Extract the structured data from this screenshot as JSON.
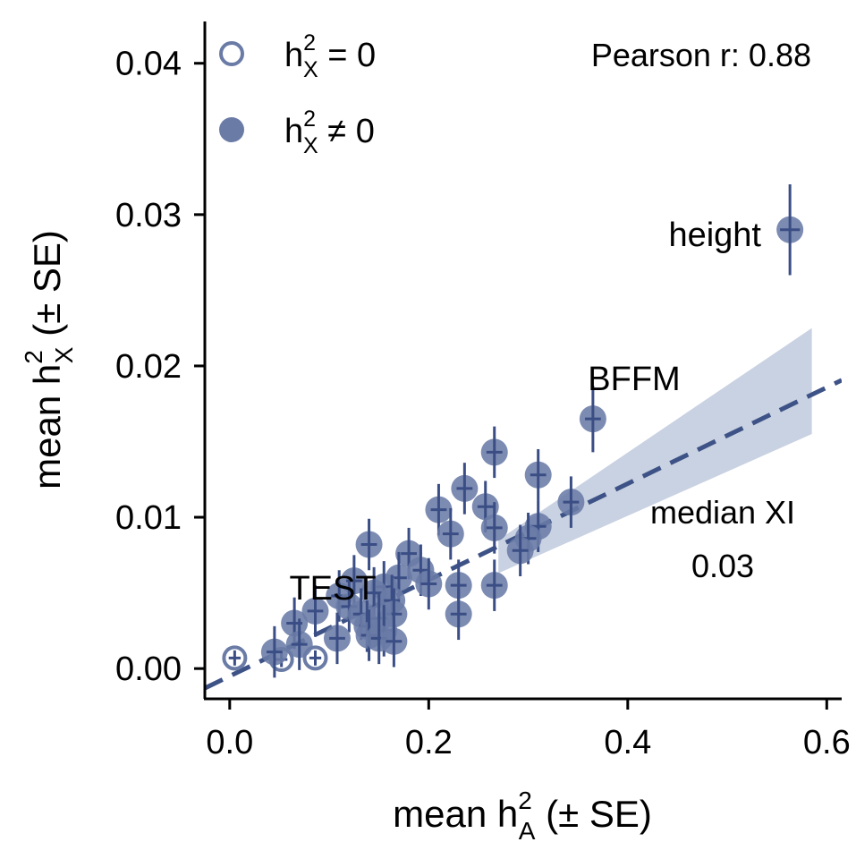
{
  "chart_data": {
    "type": "scatter",
    "title": "",
    "xlabel": {
      "base": "mean h",
      "sup": "2",
      "sub": "A",
      "suffix": " (± SE)"
    },
    "ylabel": {
      "base": "mean h",
      "sup": "2",
      "sub": "X",
      "suffix": " (± SE)"
    },
    "xlim": [
      -0.025,
      0.615
    ],
    "ylim": [
      -0.002,
      0.043
    ],
    "xticks": [
      0.0,
      0.2,
      0.4,
      0.6
    ],
    "xtick_labels": [
      "0.0",
      "0.2",
      "0.4",
      "0.6"
    ],
    "yticks": [
      0.0,
      0.01,
      0.02,
      0.03,
      0.04
    ],
    "ytick_labels": [
      "0.00",
      "0.01",
      "0.02",
      "0.03",
      "0.04"
    ],
    "grid": false,
    "legend": {
      "placement": "top-left",
      "entries": [
        {
          "base": "h",
          "sup": "2",
          "sub": "X",
          "rel": " = 0",
          "marker": "open"
        },
        {
          "base": "h",
          "sup": "2",
          "sub": "X",
          "rel": " ≠ 0",
          "marker": "filled"
        }
      ]
    },
    "pearson_text": "Pearson r: 0.88",
    "median_label": "median XI",
    "median_value": "0.03",
    "colors": {
      "point": "#6a7ba6",
      "errorbar": "#3a4e85",
      "regression": "#3d5286",
      "band": "#c9d2e2",
      "median_text": "#4a5c91",
      "axis": "#000000"
    },
    "regression": {
      "slope": 0.0318,
      "intercept": -0.0005,
      "x_range": [
        -0.025,
        0.615
      ],
      "style": "dashed"
    },
    "confidence_band": {
      "x": [
        0.27,
        0.585
      ],
      "upper": [
        0.0085,
        0.0225
      ],
      "lower": [
        0.0063,
        0.0155
      ]
    },
    "annotations": [
      {
        "text": "height",
        "x": 0.563,
        "y": 0.029,
        "anchor": "left-of-point"
      },
      {
        "text": "BFFM",
        "x": 0.365,
        "y": 0.0165,
        "anchor": "above"
      },
      {
        "text": "TEST",
        "x": 0.1,
        "y": 0.0055,
        "anchor": "above"
      }
    ],
    "series": [
      {
        "name": "h2X = 0",
        "marker": "open",
        "points": [
          {
            "x": 0.005,
            "y": 0.0007,
            "xerr": 0.006,
            "yerr": 0.0005
          },
          {
            "x": 0.052,
            "y": 0.0006,
            "xerr": 0.006,
            "yerr": 0.0005
          },
          {
            "x": 0.086,
            "y": 0.0007,
            "xerr": 0.006,
            "yerr": 0.0005
          }
        ]
      },
      {
        "name": "h2X ≠ 0",
        "marker": "filled",
        "points": [
          {
            "x": 0.563,
            "y": 0.029,
            "xerr": 0.01,
            "yerr": 0.003
          },
          {
            "x": 0.365,
            "y": 0.0165,
            "xerr": 0.008,
            "yerr": 0.0022
          },
          {
            "x": 0.266,
            "y": 0.0143,
            "xerr": 0.008,
            "yerr": 0.0017
          },
          {
            "x": 0.31,
            "y": 0.0128,
            "xerr": 0.008,
            "yerr": 0.0017
          },
          {
            "x": 0.236,
            "y": 0.0119,
            "xerr": 0.008,
            "yerr": 0.0017
          },
          {
            "x": 0.343,
            "y": 0.011,
            "xerr": 0.008,
            "yerr": 0.0017
          },
          {
            "x": 0.21,
            "y": 0.0105,
            "xerr": 0.008,
            "yerr": 0.0017
          },
          {
            "x": 0.257,
            "y": 0.0107,
            "xerr": 0.008,
            "yerr": 0.0017
          },
          {
            "x": 0.266,
            "y": 0.0093,
            "xerr": 0.008,
            "yerr": 0.0017
          },
          {
            "x": 0.31,
            "y": 0.0094,
            "xerr": 0.008,
            "yerr": 0.0017
          },
          {
            "x": 0.222,
            "y": 0.0089,
            "xerr": 0.008,
            "yerr": 0.0017
          },
          {
            "x": 0.3,
            "y": 0.0086,
            "xerr": 0.008,
            "yerr": 0.0017
          },
          {
            "x": 0.292,
            "y": 0.0078,
            "xerr": 0.008,
            "yerr": 0.0017
          },
          {
            "x": 0.14,
            "y": 0.0082,
            "xerr": 0.008,
            "yerr": 0.0017
          },
          {
            "x": 0.18,
            "y": 0.0076,
            "xerr": 0.008,
            "yerr": 0.0017
          },
          {
            "x": 0.192,
            "y": 0.0065,
            "xerr": 0.008,
            "yerr": 0.0017
          },
          {
            "x": 0.17,
            "y": 0.006,
            "xerr": 0.008,
            "yerr": 0.0017
          },
          {
            "x": 0.2,
            "y": 0.0056,
            "xerr": 0.008,
            "yerr": 0.0017
          },
          {
            "x": 0.23,
            "y": 0.0055,
            "xerr": 0.008,
            "yerr": 0.0017
          },
          {
            "x": 0.266,
            "y": 0.0055,
            "xerr": 0.008,
            "yerr": 0.0017
          },
          {
            "x": 0.155,
            "y": 0.0054,
            "xerr": 0.008,
            "yerr": 0.0017
          },
          {
            "x": 0.125,
            "y": 0.0058,
            "xerr": 0.008,
            "yerr": 0.0017
          },
          {
            "x": 0.145,
            "y": 0.005,
            "xerr": 0.008,
            "yerr": 0.0017
          },
          {
            "x": 0.11,
            "y": 0.0048,
            "xerr": 0.008,
            "yerr": 0.0017
          },
          {
            "x": 0.163,
            "y": 0.0045,
            "xerr": 0.008,
            "yerr": 0.0017
          },
          {
            "x": 0.12,
            "y": 0.0041,
            "xerr": 0.008,
            "yerr": 0.0017
          },
          {
            "x": 0.086,
            "y": 0.0038,
            "xerr": 0.008,
            "yerr": 0.0017
          },
          {
            "x": 0.132,
            "y": 0.0036,
            "xerr": 0.008,
            "yerr": 0.0017
          },
          {
            "x": 0.165,
            "y": 0.0036,
            "xerr": 0.008,
            "yerr": 0.0017
          },
          {
            "x": 0.23,
            "y": 0.0036,
            "xerr": 0.008,
            "yerr": 0.0017
          },
          {
            "x": 0.15,
            "y": 0.0033,
            "xerr": 0.008,
            "yerr": 0.0017
          },
          {
            "x": 0.065,
            "y": 0.003,
            "xerr": 0.008,
            "yerr": 0.0017
          },
          {
            "x": 0.138,
            "y": 0.0028,
            "xerr": 0.008,
            "yerr": 0.0017
          },
          {
            "x": 0.155,
            "y": 0.0025,
            "xerr": 0.008,
            "yerr": 0.0017
          },
          {
            "x": 0.14,
            "y": 0.0022,
            "xerr": 0.008,
            "yerr": 0.0017
          },
          {
            "x": 0.108,
            "y": 0.002,
            "xerr": 0.008,
            "yerr": 0.0017
          },
          {
            "x": 0.15,
            "y": 0.002,
            "xerr": 0.008,
            "yerr": 0.0017
          },
          {
            "x": 0.165,
            "y": 0.0018,
            "xerr": 0.008,
            "yerr": 0.0017
          },
          {
            "x": 0.07,
            "y": 0.0016,
            "xerr": 0.008,
            "yerr": 0.0017
          },
          {
            "x": 0.045,
            "y": 0.0011,
            "xerr": 0.008,
            "yerr": 0.0017
          }
        ]
      }
    ]
  }
}
